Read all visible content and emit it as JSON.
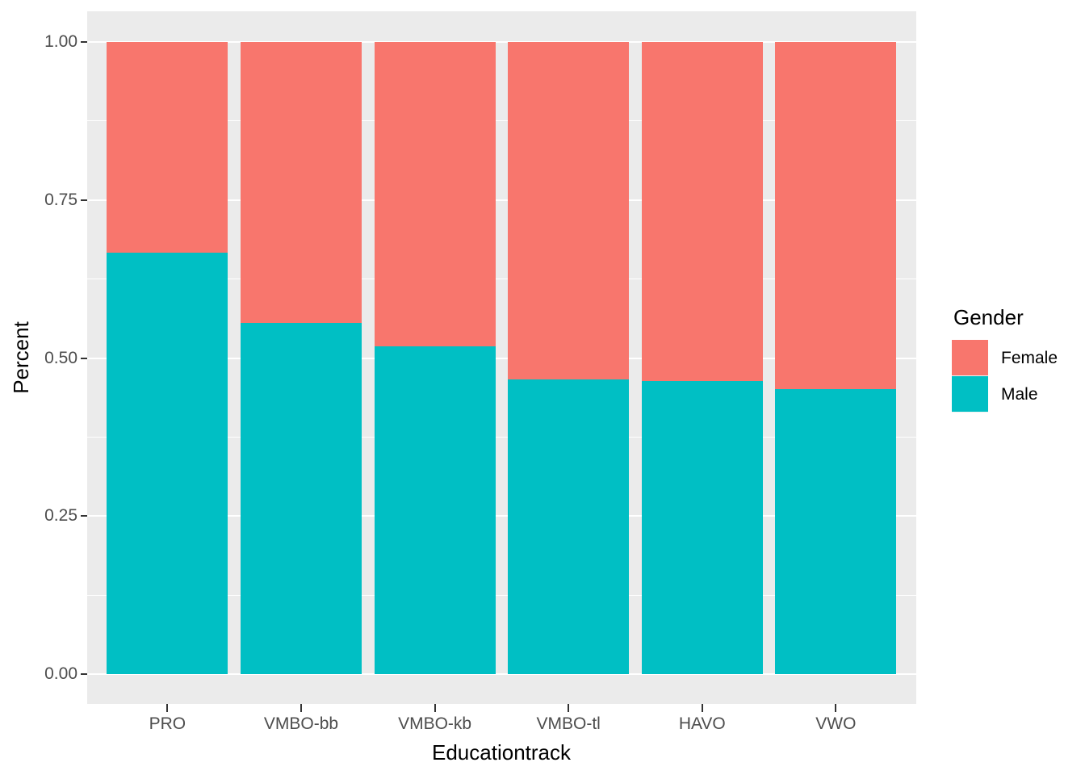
{
  "chart_data": {
    "type": "bar",
    "subtype": "stacked-proportion",
    "title": "",
    "xlabel": "Educationtrack",
    "ylabel": "Percent",
    "categories": [
      "PRO",
      "VMBO-bb",
      "VMBO-kb",
      "VMBO-tl",
      "HAVO",
      "VWO"
    ],
    "series": [
      {
        "name": "Female",
        "color": "#F8766D",
        "values": [
          0.333,
          0.444,
          0.481,
          0.534,
          0.536,
          0.549
        ]
      },
      {
        "name": "Male",
        "color": "#00BFC4",
        "values": [
          0.667,
          0.556,
          0.519,
          0.466,
          0.464,
          0.451
        ]
      }
    ],
    "ylim": [
      0,
      1
    ],
    "yticks": [
      "0.00",
      "0.25",
      "0.50",
      "0.75",
      "1.00"
    ],
    "grid": "major-and-minor-horizontal-white",
    "legend_title": "Gender",
    "legend_position": "right",
    "legend_entries": [
      "Female",
      "Male"
    ]
  },
  "colors": {
    "female": "#F8766D",
    "male": "#00BFC4",
    "panel_bg": "#EBEBEB",
    "gridline": "#FFFFFF",
    "axis_text": "#4D4D4D",
    "tick_mark": "#333333",
    "legend_key_bg": "#F2F2F2",
    "title_text": "#000000"
  }
}
